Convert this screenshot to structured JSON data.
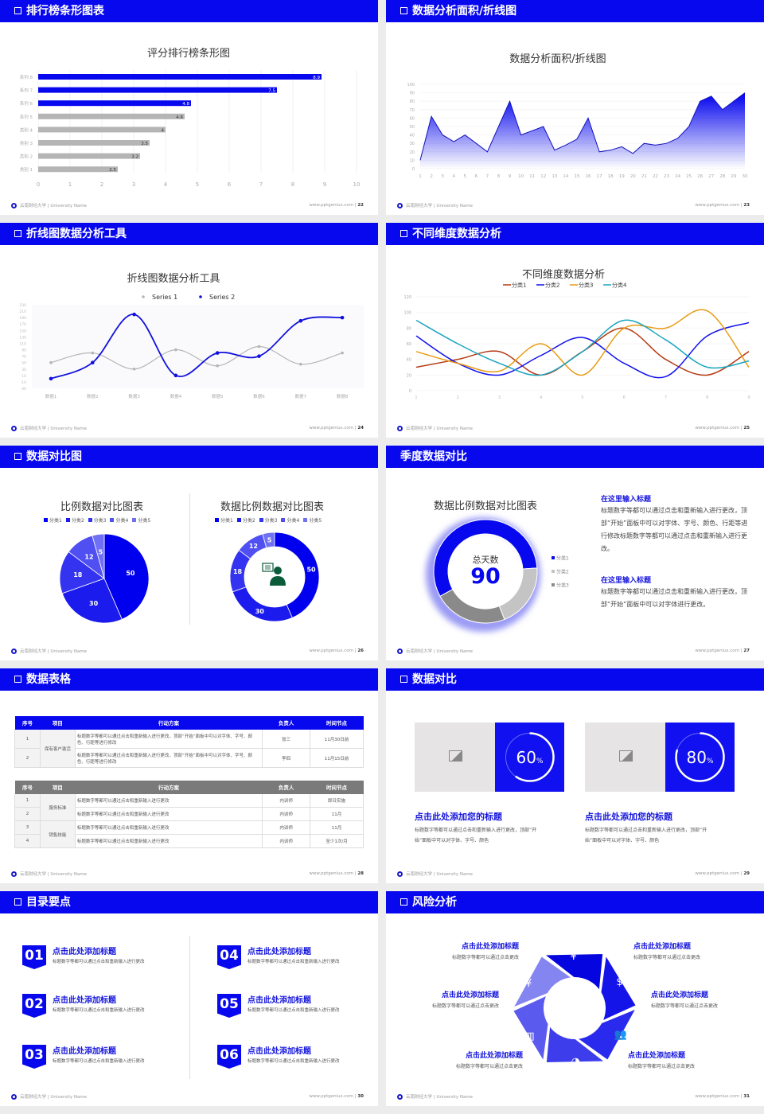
{
  "colors": {
    "primary": "#0808ee",
    "gray": "#b5b5b5",
    "dark_gray": "#8a8a8a"
  },
  "footer": {
    "left": "云南财经大学 | University Name",
    "site": "www.pptgenius.com"
  },
  "slides": [
    {
      "header": "排行榜条形图表",
      "page": "22"
    },
    {
      "header": "数据分析面积/折线图",
      "page": "23"
    },
    {
      "header": "折线图数据分析工具",
      "page": "24"
    },
    {
      "header": "不同维度数据分析",
      "page": "25"
    },
    {
      "header": "数据对比图",
      "page": "26"
    },
    {
      "header": "季度数据对比",
      "page": "27"
    },
    {
      "header": "数据表格",
      "page": "28"
    },
    {
      "header": "数据对比",
      "page": "29"
    },
    {
      "header": "目录要点",
      "page": "30"
    },
    {
      "header": "风险分析",
      "page": "31"
    }
  ],
  "chart_data": [
    {
      "type": "bar",
      "orientation": "horizontal",
      "title": "评分排行榜条形图",
      "categories": [
        "系列 8",
        "系列 7",
        "系列 6",
        "系列 5",
        "类别 4",
        "类别 3",
        "类别 2",
        "类别 1"
      ],
      "values": [
        8.9,
        7.5,
        4.8,
        4.6,
        4,
        3.5,
        3.2,
        2.5
      ],
      "highlight_colors": [
        "#0808ee",
        "#0808ee",
        "#0808ee",
        "#b5b5b5",
        "#b5b5b5",
        "#b5b5b5",
        "#b5b5b5",
        "#b5b5b5"
      ],
      "xlim": [
        0,
        10
      ],
      "xticks": [
        0,
        1,
        2,
        3,
        4,
        5,
        6,
        7,
        8,
        9,
        10
      ],
      "grid": true
    },
    {
      "type": "area",
      "title": "数据分析面积/折线图",
      "x": [
        1,
        2,
        3,
        4,
        5,
        6,
        7,
        8,
        9,
        10,
        11,
        12,
        13,
        14,
        15,
        16,
        17,
        18,
        19,
        20,
        21,
        22,
        23,
        24,
        25,
        26,
        27,
        28,
        29,
        30
      ],
      "values": [
        10,
        62,
        40,
        32,
        40,
        30,
        20,
        50,
        80,
        40,
        45,
        50,
        22,
        28,
        35,
        60,
        20,
        22,
        26,
        18,
        30,
        28,
        30,
        36,
        50,
        80,
        86,
        70,
        80,
        90
      ],
      "ylim": [
        0,
        100
      ],
      "yticks": [
        0,
        10,
        20,
        30,
        40,
        50,
        60,
        70,
        80,
        90,
        100
      ],
      "grid": true
    },
    {
      "type": "line",
      "smooth": true,
      "title": "折线图数据分析工具",
      "categories": [
        "数据1",
        "数据2",
        "数据3",
        "数据4",
        "数据5",
        "数据6",
        "数据7",
        "数据8"
      ],
      "series": [
        {
          "name": "Series 1",
          "values": [
            50,
            80,
            30,
            90,
            40,
            100,
            45,
            80
          ],
          "color": "#b5b5b5"
        },
        {
          "name": "Series 2",
          "values": [
            0,
            50,
            200,
            10,
            80,
            70,
            180,
            190
          ],
          "color": "#1010dd"
        }
      ],
      "ylim": [
        -30,
        230
      ],
      "yticks": [
        -30,
        -10,
        10,
        30,
        50,
        70,
        90,
        110,
        130,
        150,
        170,
        190,
        210,
        230
      ],
      "legend": "top"
    },
    {
      "type": "line",
      "smooth": true,
      "title": "不同维度数据分析",
      "x": [
        1,
        2,
        3,
        4,
        5,
        6,
        7,
        8,
        9
      ],
      "series": [
        {
          "name": "分类1",
          "values": [
            30,
            40,
            50,
            20,
            50,
            80,
            40,
            20,
            50
          ],
          "color": "#b53a12"
        },
        {
          "name": "分类2",
          "values": [
            70,
            35,
            20,
            45,
            68,
            35,
            18,
            70,
            87
          ],
          "color": "#1010ee"
        },
        {
          "name": "分类3",
          "values": [
            50,
            35,
            25,
            60,
            20,
            80,
            80,
            102,
            30
          ],
          "color": "#e89a12"
        },
        {
          "name": "分类4",
          "values": [
            90,
            60,
            35,
            20,
            50,
            90,
            65,
            30,
            38
          ],
          "color": "#1aa5c0"
        }
      ],
      "ylim": [
        0,
        120
      ],
      "yticks": [
        0,
        20,
        40,
        60,
        80,
        100,
        120
      ],
      "legend": "top"
    },
    {
      "type": "pie",
      "title": "比例数据对比图表",
      "categories": [
        "分类1",
        "分类2",
        "分类3",
        "分类4",
        "分类5"
      ],
      "values": [
        50,
        30,
        18,
        12,
        5
      ],
      "colors": [
        "#0000ee",
        "#1b1bee",
        "#3434f0",
        "#4f4ff2",
        "#7070f5"
      ],
      "legend": "top"
    },
    {
      "type": "pie",
      "donut": true,
      "title": "数据比例数据对比图表",
      "categories": [
        "分类1",
        "分类2",
        "分类3",
        "分类4",
        "分类5"
      ],
      "values": [
        50,
        30,
        18,
        12,
        5
      ],
      "colors": [
        "#0000ee",
        "#1b1bee",
        "#3434f0",
        "#4f4ff2",
        "#7070f5"
      ],
      "legend": "top",
      "center_icon": "customer-service-icon"
    },
    {
      "type": "pie",
      "donut": true,
      "title": "数据比例数据对比图表",
      "categories": [
        "分类1",
        "分类2",
        "分类3"
      ],
      "values": [
        57,
        20,
        23
      ],
      "colors": [
        "#0808ee",
        "#c4c4c4",
        "#8a8a8a"
      ],
      "legend": "right",
      "center_label": "总天数",
      "center_value": "90"
    }
  ],
  "quarter": {
    "blocks": [
      {
        "title": "在这里输入标题",
        "text": "标题数字等都可以通过点击和重新输入进行更改，顶部“开始”面板中可以对字体、字号、颜色、行距等进行修改标题数字等都可以通过点击和重新输入进行更改。"
      },
      {
        "title": "在这里输入标题",
        "text": "标题数字等都可以通过点击和重新输入进行更改，顶部“开始”面板中可以对字体进行更改。"
      }
    ]
  },
  "tables": [
    {
      "headers": [
        "序号",
        "项目",
        "行动方案",
        "负责人",
        "时间节点"
      ],
      "group": "保有客户激活",
      "rows": [
        [
          "1",
          "标题数字等都可以通过点击和重新输入进行更改，顶部“开始”面板中可以对字体、字号、颜色、行距等进行修改",
          "张三",
          "11月30日前"
        ],
        [
          "2",
          "标题数字等都可以通过点击和重新输入进行更改，顶部“开始”面板中可以对字体、字号、颜色、行距等进行修改",
          "李四",
          "11月15日前"
        ]
      ]
    },
    {
      "headers": [
        "序号",
        "项目",
        "行动方案",
        "负责人",
        "时间节点"
      ],
      "groups": [
        "服务标准",
        "销售技能"
      ],
      "rows": [
        [
          "1",
          "标题数字等都可以通过点击和重新输入进行更改",
          "内训师",
          "即日实施"
        ],
        [
          "2",
          "标题数字等都可以通过点击和重新输入进行更改",
          "内训师",
          "11月"
        ],
        [
          "3",
          "标题数字等都可以通过点击和重新输入进行更改",
          "内训师",
          "11月"
        ],
        [
          "4",
          "标题数字等都可以通过点击和重新输入进行更改",
          "内训师",
          "至少1次/月"
        ]
      ]
    }
  ],
  "compare": [
    {
      "percent": 60,
      "label": "60",
      "unit": "%",
      "title": "点击此处添加您的标题",
      "text1": "标题数字等都可以通过点击和重新输入进行更改，顶部“开",
      "text2": "始”面板中可以对字体、字号、颜色"
    },
    {
      "percent": 80,
      "label": "80",
      "unit": "%",
      "title": "点击此处添加您的标题",
      "text1": "标题数字等都可以通过点击和重新输入进行更改，顶部“开",
      "text2": "始”面板中可以对字体、字号、颜色"
    }
  ],
  "toc": [
    {
      "num": "01",
      "title": "点击此处添加标题",
      "text": "标题数字等都可以通过点击和重新输入进行更改"
    },
    {
      "num": "02",
      "title": "点击此处添加标题",
      "text": "标题数字等都可以通过点击和重新输入进行更改"
    },
    {
      "num": "03",
      "title": "点击此处添加标题",
      "text": "标题数字等都可以通过点击和重新输入进行更改"
    },
    {
      "num": "04",
      "title": "点击此处添加标题",
      "text": "标题数字等都可以通过点击和重新输入进行更改"
    },
    {
      "num": "05",
      "title": "点击此处添加标题",
      "text": "标题数字等都可以通过点击和重新输入进行更改"
    },
    {
      "num": "06",
      "title": "点击此处添加标题",
      "text": "标题数字等都可以通过点击和重新输入进行更改"
    }
  ],
  "risk": [
    {
      "title": "点击此处添加标题",
      "text": "标题数字等都可以通过点击更改",
      "icon": "money-bag-icon"
    },
    {
      "title": "点击此处添加标题",
      "text": "标题数字等都可以通过点击更改",
      "icon": "coins-icon"
    },
    {
      "title": "点击此处添加标题",
      "text": "标题数字等都可以通过点击更改",
      "icon": "yen-hand-icon"
    },
    {
      "title": "点击此处添加标题",
      "text": "标题数字等都可以通过点击更改",
      "icon": "users-icon"
    },
    {
      "title": "点击此处添加标题",
      "text": "标题数字等都可以通过点击更改",
      "icon": "building-icon"
    },
    {
      "title": "点击此处添加标题",
      "text": "标题数字等都可以通过点击更改",
      "icon": "pie-chart-icon"
    }
  ]
}
